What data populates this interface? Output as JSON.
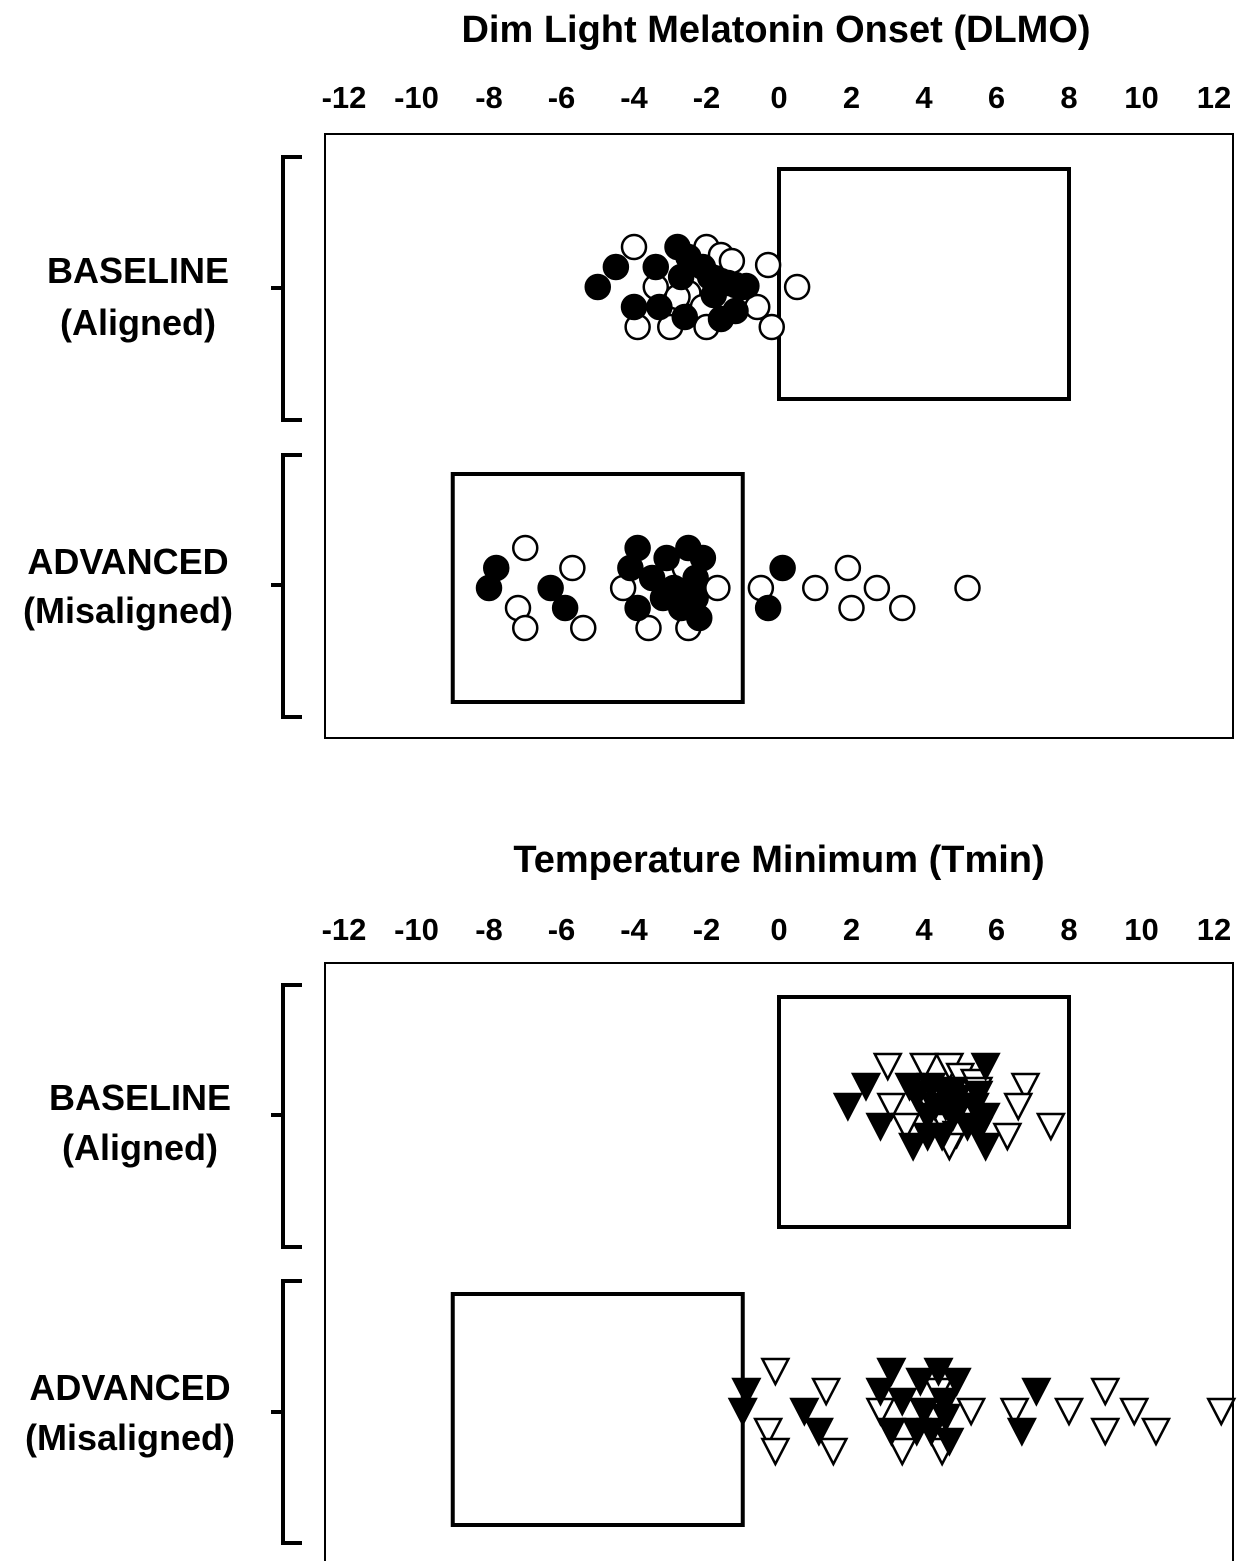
{
  "chart_data": [
    {
      "type": "scatter",
      "title": "Dim Light Melatonin Onset (DLMO)",
      "xlim": [
        -12,
        12
      ],
      "ticks": [
        "-12",
        "-10",
        "-8",
        "-6",
        "-4",
        "-2",
        "0",
        "2",
        "4",
        "6",
        "8",
        "10",
        "12"
      ],
      "marker": "circle",
      "groups": [
        {
          "label_line1": "BASELINE",
          "label_line2": "(Aligned)",
          "box": [
            0,
            8
          ],
          "filled": [
            [
              -2.8,
              2
            ],
            [
              -2.5,
              1.5
            ],
            [
              -4.5,
              1
            ],
            [
              -3.4,
              1
            ],
            [
              -2.1,
              1
            ],
            [
              -2.7,
              0.5
            ],
            [
              -1.9,
              0.5
            ],
            [
              -1.6,
              0.3
            ],
            [
              -1.4,
              0.2
            ],
            [
              -1.2,
              0.1
            ],
            [
              -1.0,
              0
            ],
            [
              -0.9,
              0.05
            ],
            [
              -5.0,
              0
            ],
            [
              -1.8,
              -0.4
            ],
            [
              -4.0,
              -1
            ],
            [
              -3.3,
              -1
            ],
            [
              -1.2,
              -1.2
            ],
            [
              -2.6,
              -1.5
            ],
            [
              -1.6,
              -1.6
            ]
          ],
          "open": [
            [
              -4.0,
              2
            ],
            [
              -2.0,
              2
            ],
            [
              -1.6,
              1.6
            ],
            [
              -1.3,
              1.3
            ],
            [
              -0.3,
              1.1
            ],
            [
              -3.4,
              0
            ],
            [
              -2.4,
              0
            ],
            [
              0.5,
              0
            ],
            [
              -2.5,
              -0.3
            ],
            [
              -2.8,
              -0.5
            ],
            [
              -2.1,
              -1
            ],
            [
              -0.6,
              -1
            ],
            [
              -3.9,
              -2
            ],
            [
              -3.0,
              -2
            ],
            [
              -2.0,
              -2
            ],
            [
              -0.2,
              -2
            ]
          ]
        },
        {
          "label_line1": "ADVANCED",
          "label_line2": "(Misaligned)",
          "box": [
            -9,
            -1
          ],
          "filled": [
            [
              -3.9,
              2
            ],
            [
              -2.5,
              2
            ],
            [
              -3.1,
              1.5
            ],
            [
              -2.1,
              1.5
            ],
            [
              -7.8,
              1
            ],
            [
              -4.1,
              1
            ],
            [
              0.1,
              1
            ],
            [
              -3.5,
              0.5
            ],
            [
              -2.3,
              0.5
            ],
            [
              -8.0,
              0
            ],
            [
              -6.3,
              0
            ],
            [
              -2.9,
              0
            ],
            [
              -3.2,
              -0.5
            ],
            [
              -2.3,
              -0.5
            ],
            [
              -5.9,
              -1
            ],
            [
              -3.9,
              -1
            ],
            [
              -2.7,
              -1
            ],
            [
              -0.3,
              -1
            ],
            [
              -2.2,
              -1.5
            ]
          ],
          "open": [
            [
              -7.0,
              2
            ],
            [
              -5.7,
              1
            ],
            [
              -2.6,
              1
            ],
            [
              1.9,
              1
            ],
            [
              -4.3,
              0
            ],
            [
              -1.7,
              0
            ],
            [
              -0.5,
              0
            ],
            [
              1.0,
              0
            ],
            [
              2.7,
              0
            ],
            [
              5.2,
              0
            ],
            [
              -7.2,
              -1
            ],
            [
              2.0,
              -1
            ],
            [
              3.4,
              -1
            ],
            [
              -7.0,
              -2
            ],
            [
              -5.4,
              -2
            ],
            [
              -3.6,
              -2
            ],
            [
              -2.5,
              -2
            ]
          ]
        }
      ]
    },
    {
      "type": "scatter",
      "title": "Temperature Minimum (Tmin)",
      "xlim": [
        -12,
        12
      ],
      "ticks": [
        "-12",
        "-10",
        "-8",
        "-6",
        "-4",
        "-2",
        "0",
        "2",
        "4",
        "6",
        "8",
        "10",
        "12"
      ],
      "marker": "triangle-down",
      "groups": [
        {
          "label_line1": "BASELINE",
          "label_line2": "(Aligned)",
          "box": [
            0,
            8
          ],
          "filled": [
            [
              5.7,
              2
            ],
            [
              2.4,
              1
            ],
            [
              3.6,
              1
            ],
            [
              4.2,
              1
            ],
            [
              4.8,
              0.8
            ],
            [
              5.5,
              0.6
            ],
            [
              4.6,
              0.6
            ],
            [
              3.8,
              0.5
            ],
            [
              4.9,
              0.4
            ],
            [
              1.9,
              0
            ],
            [
              4.3,
              0
            ],
            [
              4.6,
              0
            ],
            [
              5.0,
              0
            ],
            [
              5.4,
              0
            ],
            [
              4.1,
              -0.5
            ],
            [
              4.8,
              -0.5
            ],
            [
              5.7,
              -0.5
            ],
            [
              2.8,
              -1
            ],
            [
              5.2,
              -1
            ],
            [
              5.5,
              -1.2
            ],
            [
              4.1,
              -1.5
            ],
            [
              4.5,
              -1.5
            ],
            [
              3.7,
              -2
            ],
            [
              5.7,
              -2
            ]
          ],
          "open": [
            [
              3.0,
              2
            ],
            [
              4.0,
              2
            ],
            [
              4.7,
              2
            ],
            [
              5.0,
              1.5
            ],
            [
              5.4,
              1.2
            ],
            [
              6.8,
              1
            ],
            [
              5.5,
              0.8
            ],
            [
              4.0,
              0.6
            ],
            [
              3.1,
              0
            ],
            [
              6.6,
              0
            ],
            [
              4.7,
              -0.5
            ],
            [
              3.5,
              -1
            ],
            [
              4.6,
              -1
            ],
            [
              7.5,
              -1
            ],
            [
              4.9,
              -1.4
            ],
            [
              6.3,
              -1.5
            ],
            [
              4.7,
              -2
            ]
          ]
        },
        {
          "label_line1": "ADVANCED",
          "label_line2": "(Misaligned)",
          "box": [
            -9,
            -1
          ],
          "filled": [
            [
              3.1,
              2
            ],
            [
              4.4,
              2
            ],
            [
              3.9,
              1.5
            ],
            [
              4.9,
              1.5
            ],
            [
              -0.9,
              1
            ],
            [
              2.8,
              1
            ],
            [
              7.1,
              1
            ],
            [
              3.4,
              0.5
            ],
            [
              4.6,
              0.5
            ],
            [
              -1.0,
              0
            ],
            [
              0.7,
              0
            ],
            [
              4.0,
              0
            ],
            [
              4.6,
              -0.3
            ],
            [
              1.1,
              -1
            ],
            [
              3.1,
              -1
            ],
            [
              3.8,
              -1
            ],
            [
              4.2,
              -1
            ],
            [
              6.7,
              -1
            ],
            [
              4.7,
              -1.5
            ]
          ],
          "open": [
            [
              -0.1,
              2
            ],
            [
              1.3,
              1
            ],
            [
              4.4,
              1
            ],
            [
              9.0,
              1
            ],
            [
              2.8,
              0
            ],
            [
              5.3,
              0
            ],
            [
              6.5,
              0
            ],
            [
              8.0,
              0
            ],
            [
              9.8,
              0
            ],
            [
              12.2,
              0
            ],
            [
              -0.3,
              -1
            ],
            [
              9.0,
              -1
            ],
            [
              10.4,
              -1
            ],
            [
              -0.1,
              -2
            ],
            [
              1.5,
              -2
            ],
            [
              3.4,
              -2
            ],
            [
              4.5,
              -2
            ]
          ]
        }
      ]
    }
  ]
}
